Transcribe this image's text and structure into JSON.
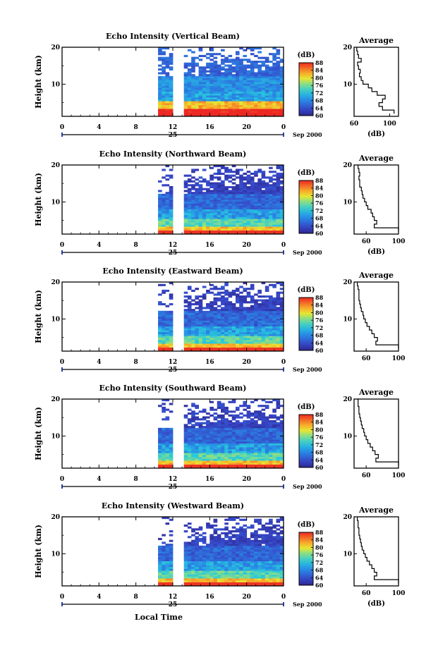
{
  "figure": {
    "xlabel": "Local Time",
    "date_label": "Sep 2000",
    "day_label": "25"
  },
  "chart_data": [
    {
      "type": "heatmap",
      "title": "Echo Intensity (Vertical Beam)",
      "ylabel": "Height (km)",
      "x_ticks": [
        "0",
        "4",
        "8",
        "12",
        "16",
        "20",
        "0"
      ],
      "x_range_hours": [
        0,
        24
      ],
      "y_ticks": [
        "10",
        "20"
      ],
      "y_range_km": [
        1.3,
        20
      ],
      "colorbar": {
        "unit": "(dB)",
        "ticks": [
          "60",
          "64",
          "68",
          "72",
          "76",
          "80",
          "84",
          "88"
        ],
        "range": [
          60,
          88
        ]
      },
      "data_gap_hours": [
        [
          0,
          10.5
        ],
        [
          12.1,
          13.1
        ]
      ],
      "average_profile": {
        "title": "Average",
        "xlabel": "(dB)",
        "x_ticks": [
          "60",
          "100"
        ],
        "x_range": [
          60,
          110
        ],
        "y_ticks": [
          "10",
          "20"
        ],
        "heights_km": [
          2,
          3,
          4,
          5,
          6,
          7,
          8,
          9,
          10,
          11,
          12,
          13,
          14,
          15,
          16,
          17,
          18,
          19,
          20
        ],
        "values_db": [
          105,
          92,
          88,
          92,
          95,
          86,
          80,
          76,
          70,
          68,
          66,
          67,
          65,
          64,
          68,
          65,
          64,
          63,
          63
        ]
      }
    },
    {
      "type": "heatmap",
      "title": "Echo Intensity (Northward Beam)",
      "ylabel": "Height (km)",
      "x_ticks": [
        "0",
        "4",
        "8",
        "12",
        "16",
        "20",
        "0"
      ],
      "x_range_hours": [
        0,
        24
      ],
      "y_ticks": [
        "10",
        "20"
      ],
      "y_range_km": [
        1.3,
        20
      ],
      "colorbar": {
        "unit": "(dB)",
        "ticks": [
          "60",
          "64",
          "68",
          "72",
          "76",
          "80",
          "84",
          "88"
        ],
        "range": [
          60,
          88
        ]
      },
      "data_gap_hours": [
        [
          0,
          10.5
        ],
        [
          12.1,
          13.1
        ]
      ],
      "average_profile": {
        "title": "Average",
        "xlabel": "(dB)",
        "x_ticks": [
          "60",
          "100"
        ],
        "x_range": [
          45,
          100
        ],
        "y_ticks": [
          "10",
          "20"
        ],
        "heights_km": [
          2,
          3,
          4,
          5,
          6,
          7,
          8,
          9,
          10,
          11,
          12,
          13,
          14,
          15,
          16,
          17,
          18,
          19,
          20
        ],
        "values_db": [
          100,
          70,
          73,
          70,
          68,
          66,
          62,
          60,
          58,
          56,
          55,
          54,
          52,
          52,
          51,
          52,
          51,
          50,
          50
        ]
      }
    },
    {
      "type": "heatmap",
      "title": "Echo Intensity (Eastward Beam)",
      "ylabel": "Height (km)",
      "x_ticks": [
        "0",
        "4",
        "8",
        "12",
        "16",
        "20",
        "0"
      ],
      "x_range_hours": [
        0,
        24
      ],
      "y_ticks": [
        "10",
        "20"
      ],
      "y_range_km": [
        1.3,
        20
      ],
      "colorbar": {
        "unit": "(dB)",
        "ticks": [
          "60",
          "64",
          "68",
          "72",
          "76",
          "80",
          "84",
          "88"
        ],
        "range": [
          60,
          88
        ]
      },
      "data_gap_hours": [
        [
          0,
          10.5
        ],
        [
          12.1,
          13.1
        ]
      ],
      "average_profile": {
        "title": "Average",
        "xlabel": "",
        "x_ticks": [
          "60",
          "100"
        ],
        "x_range": [
          45,
          100
        ],
        "y_ticks": [
          "10",
          "20"
        ],
        "heights_km": [
          2,
          3,
          4,
          5,
          6,
          7,
          8,
          9,
          10,
          11,
          12,
          13,
          14,
          15,
          16,
          17,
          18,
          19,
          20
        ],
        "values_db": [
          100,
          72,
          74,
          70,
          67,
          64,
          61,
          59,
          57,
          56,
          54,
          53,
          52,
          51,
          51,
          51,
          50,
          49,
          49
        ]
      }
    },
    {
      "type": "heatmap",
      "title": "Echo Intensity (Southward Beam)",
      "ylabel": "Height (km)",
      "x_ticks": [
        "0",
        "4",
        "8",
        "12",
        "16",
        "20",
        "0"
      ],
      "x_range_hours": [
        0,
        24
      ],
      "y_ticks": [
        "10",
        "20"
      ],
      "y_range_km": [
        1.3,
        20
      ],
      "colorbar": {
        "unit": "(dB)",
        "ticks": [
          "60",
          "64",
          "68",
          "72",
          "76",
          "80",
          "84",
          "88"
        ],
        "range": [
          60,
          88
        ]
      },
      "data_gap_hours": [
        [
          0,
          10.5
        ],
        [
          12.1,
          13.1
        ]
      ],
      "average_profile": {
        "title": "Average",
        "xlabel": "",
        "x_ticks": [
          "60",
          "100"
        ],
        "x_range": [
          45,
          100
        ],
        "y_ticks": [
          "10",
          "20"
        ],
        "heights_km": [
          2,
          3,
          4,
          5,
          6,
          7,
          8,
          9,
          10,
          11,
          12,
          13,
          14,
          15,
          16,
          17,
          18,
          19,
          20
        ],
        "values_db": [
          100,
          72,
          75,
          71,
          68,
          65,
          62,
          60,
          58,
          57,
          55,
          54,
          53,
          52,
          51,
          51,
          50,
          50,
          49
        ]
      }
    },
    {
      "type": "heatmap",
      "title": "Echo Intensity (Westward Beam)",
      "ylabel": "Height (km)",
      "x_ticks": [
        "0",
        "4",
        "8",
        "12",
        "16",
        "20",
        "0"
      ],
      "x_range_hours": [
        0,
        24
      ],
      "y_ticks": [
        "10",
        "20"
      ],
      "y_range_km": [
        1.3,
        20
      ],
      "colorbar": {
        "unit": "(dB)",
        "ticks": [
          "60",
          "64",
          "68",
          "72",
          "76",
          "80",
          "84",
          "88"
        ],
        "range": [
          60,
          88
        ]
      },
      "data_gap_hours": [
        [
          0,
          10.5
        ],
        [
          12.1,
          13.1
        ]
      ],
      "average_profile": {
        "title": "Average",
        "xlabel": "(dB)",
        "x_ticks": [
          "60",
          "100"
        ],
        "x_range": [
          45,
          100
        ],
        "y_ticks": [
          "10",
          "20"
        ],
        "heights_km": [
          2,
          3,
          4,
          5,
          6,
          7,
          8,
          9,
          10,
          11,
          12,
          13,
          14,
          15,
          16,
          17,
          18,
          19,
          20
        ],
        "values_db": [
          100,
          70,
          73,
          70,
          67,
          64,
          61,
          59,
          57,
          55,
          54,
          53,
          52,
          51,
          51,
          50,
          50,
          49,
          49
        ]
      }
    }
  ]
}
